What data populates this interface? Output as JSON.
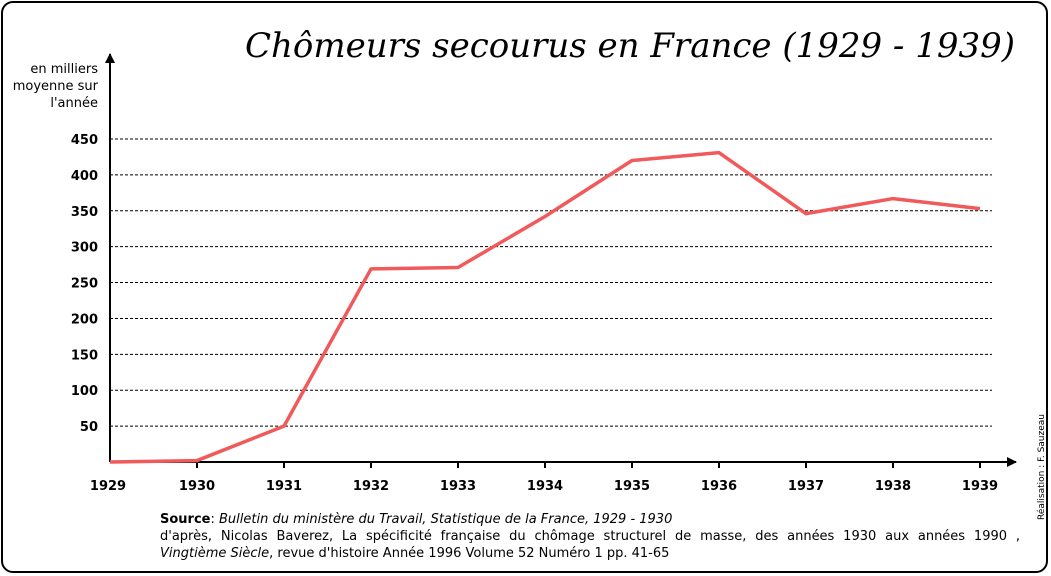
{
  "chart_data": {
    "type": "line",
    "title": "Chômeurs secourus en France (1929 - 1939)",
    "ylabel": [
      "en milliers",
      "moyenne sur",
      "l'année"
    ],
    "x": [
      "1929",
      "1930",
      "1931",
      "1932",
      "1933",
      "1934",
      "1935",
      "1936",
      "1937",
      "1938",
      "1939"
    ],
    "series": [
      {
        "values": [
          0,
          2,
          50,
          269,
          271,
          342,
          420,
          431,
          346,
          367,
          353
        ]
      }
    ],
    "yticks": [
      50,
      100,
      150,
      200,
      250,
      300,
      350,
      400,
      450
    ],
    "ylim": [
      0,
      450
    ],
    "grid": "dashed horizontal",
    "line_color": "#f05a5a"
  },
  "credit": "Réalisation : F. Sauzeau",
  "source": {
    "label": "Source",
    "line1": "Bulletin du ministère du Travail, Statistique de la France, 1929 - 1930",
    "line2": "d'après, Nicolas Baverez, La spécificité française du chômage structurel de masse, des années 1930 aux années 1990 ,",
    "line3_italic": "Vingtième Siècle",
    "line3_rest": ", revue d'histoire  Année 1996  Volume 52  Numéro 1  pp. 41-65"
  }
}
